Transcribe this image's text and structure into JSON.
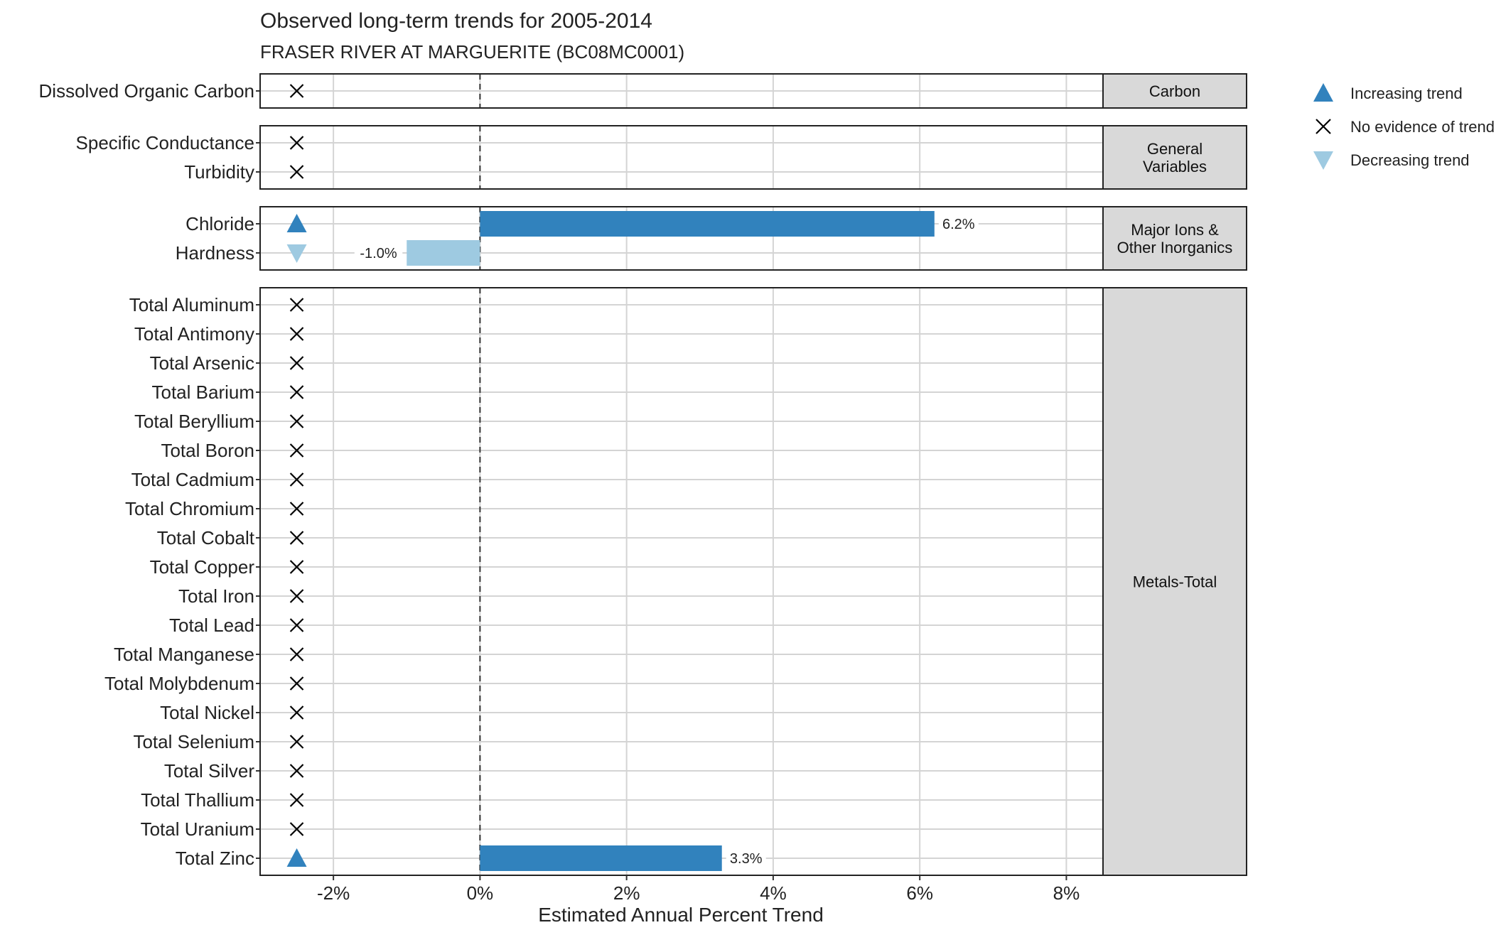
{
  "chart_data": {
    "type": "bar",
    "title": "Observed long-term trends for 2005-2014",
    "subtitle": "FRASER RIVER AT MARGUERITE (BC08MC0001)",
    "xlabel": "Estimated Annual Percent Trend",
    "ylabel": "",
    "xlim": [
      -3.0,
      8.5
    ],
    "xticks": [
      -2,
      0,
      2,
      4,
      6,
      8
    ],
    "xtick_labels": [
      "-2%",
      "0%",
      "2%",
      "4%",
      "6%",
      "8%"
    ],
    "grid": true,
    "legend_position": "right",
    "legend": [
      {
        "key": "increasing",
        "label": "Increasing trend",
        "symbol": "triangle-up",
        "color": "#3182BD"
      },
      {
        "key": "none",
        "label": "No evidence of trend",
        "symbol": "x",
        "color": "#000000"
      },
      {
        "key": "decreasing",
        "label": "Decreasing trend",
        "symbol": "triangle-down",
        "color": "#9ECAE1"
      }
    ],
    "colors": {
      "increasing": "#3182BD",
      "decreasing": "#9ECAE1",
      "none": "#000000",
      "strip": "#D9D9D9"
    },
    "panels": [
      {
        "name": "Carbon",
        "strip_lines": [
          "Carbon"
        ],
        "rows": [
          {
            "label": "Dissolved Organic Carbon",
            "trend": "none",
            "value": null,
            "value_label": ""
          }
        ]
      },
      {
        "name": "General Variables",
        "strip_lines": [
          "General",
          "Variables"
        ],
        "rows": [
          {
            "label": "Specific Conductance",
            "trend": "none",
            "value": null,
            "value_label": ""
          },
          {
            "label": "Turbidity",
            "trend": "none",
            "value": null,
            "value_label": ""
          }
        ]
      },
      {
        "name": "Major Ions & Other Inorganics",
        "strip_lines": [
          "Major Ions &",
          "Other Inorganics"
        ],
        "rows": [
          {
            "label": "Chloride",
            "trend": "increasing",
            "value": 6.2,
            "value_label": "6.2%"
          },
          {
            "label": "Hardness",
            "trend": "decreasing",
            "value": -1.0,
            "value_label": "-1.0%"
          }
        ]
      },
      {
        "name": "Metals-Total",
        "strip_lines": [
          "Metals-Total"
        ],
        "rows": [
          {
            "label": "Total Aluminum",
            "trend": "none",
            "value": null,
            "value_label": ""
          },
          {
            "label": "Total Antimony",
            "trend": "none",
            "value": null,
            "value_label": ""
          },
          {
            "label": "Total Arsenic",
            "trend": "none",
            "value": null,
            "value_label": ""
          },
          {
            "label": "Total Barium",
            "trend": "none",
            "value": null,
            "value_label": ""
          },
          {
            "label": "Total Beryllium",
            "trend": "none",
            "value": null,
            "value_label": ""
          },
          {
            "label": "Total Boron",
            "trend": "none",
            "value": null,
            "value_label": ""
          },
          {
            "label": "Total Cadmium",
            "trend": "none",
            "value": null,
            "value_label": ""
          },
          {
            "label": "Total Chromium",
            "trend": "none",
            "value": null,
            "value_label": ""
          },
          {
            "label": "Total Cobalt",
            "trend": "none",
            "value": null,
            "value_label": ""
          },
          {
            "label": "Total Copper",
            "trend": "none",
            "value": null,
            "value_label": ""
          },
          {
            "label": "Total Iron",
            "trend": "none",
            "value": null,
            "value_label": ""
          },
          {
            "label": "Total Lead",
            "trend": "none",
            "value": null,
            "value_label": ""
          },
          {
            "label": "Total Manganese",
            "trend": "none",
            "value": null,
            "value_label": ""
          },
          {
            "label": "Total Molybdenum",
            "trend": "none",
            "value": null,
            "value_label": ""
          },
          {
            "label": "Total Nickel",
            "trend": "none",
            "value": null,
            "value_label": ""
          },
          {
            "label": "Total Selenium",
            "trend": "none",
            "value": null,
            "value_label": ""
          },
          {
            "label": "Total Silver",
            "trend": "none",
            "value": null,
            "value_label": ""
          },
          {
            "label": "Total Thallium",
            "trend": "none",
            "value": null,
            "value_label": ""
          },
          {
            "label": "Total Uranium",
            "trend": "none",
            "value": null,
            "value_label": ""
          },
          {
            "label": "Total Zinc",
            "trend": "increasing",
            "value": 3.3,
            "value_label": "3.3%"
          }
        ]
      }
    ]
  }
}
